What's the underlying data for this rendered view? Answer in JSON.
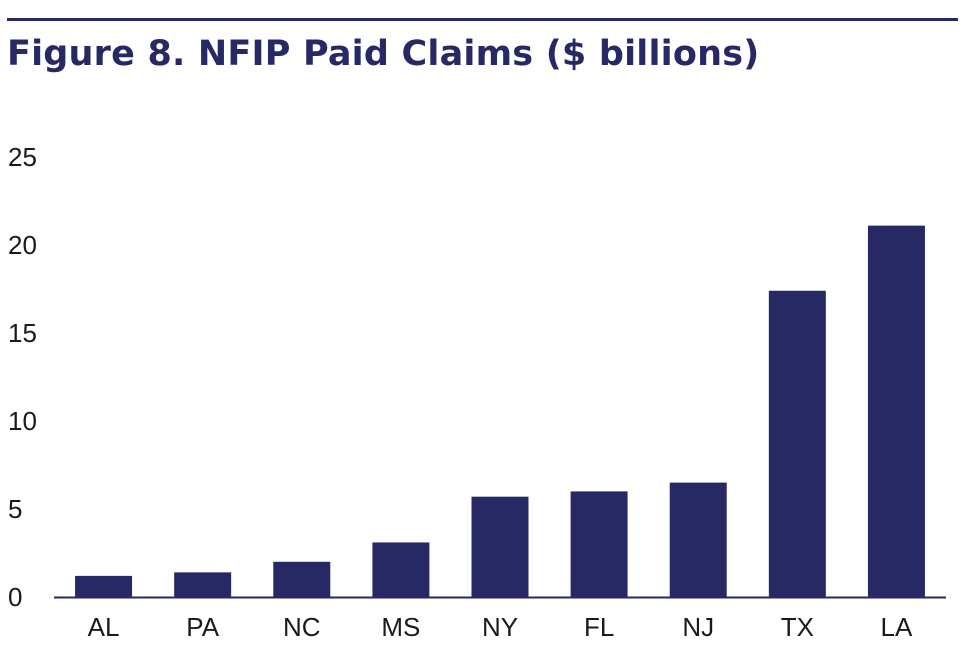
{
  "chart_data": {
    "type": "bar",
    "title": "Figure 8. NFIP Paid Claims ($ billions)",
    "categories": [
      "AL",
      "PA",
      "NC",
      "MS",
      "NY",
      "FL",
      "NJ",
      "TX",
      "LA"
    ],
    "values": [
      1.2,
      1.4,
      2.0,
      3.1,
      5.7,
      6.0,
      6.5,
      17.4,
      21.1
    ],
    "ylim": [
      0,
      25
    ],
    "yticks": [
      "0",
      "5",
      "10",
      "15",
      "20",
      "25"
    ],
    "xlabel": "",
    "ylabel": "",
    "grid": false,
    "legend": "none",
    "bar_color": "#272965",
    "axis_color": "#272965"
  }
}
